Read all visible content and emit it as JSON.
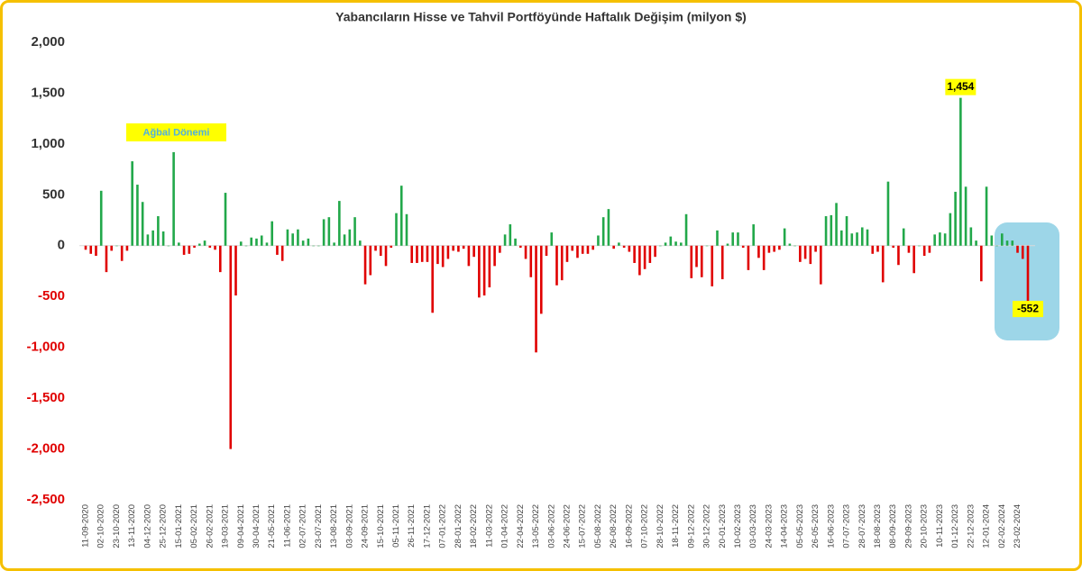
{
  "chart_data": {
    "type": "bar",
    "title": "Yabancıların Hisse ve Tahvil Portföyünde Haftalık Değişim (milyon $)",
    "categories": [
      "11-09-2020",
      null,
      null,
      "02-10-2020",
      null,
      null,
      "23-10-2020",
      null,
      null,
      "13-11-2020",
      null,
      null,
      "04-12-2020",
      null,
      null,
      "25-12-2020",
      null,
      null,
      "15-01-2021",
      null,
      null,
      "05-02-2021",
      null,
      null,
      "26-02-2021",
      null,
      null,
      "19-03-2021",
      null,
      null,
      "09-04-2021",
      null,
      null,
      "30-04-2021",
      null,
      null,
      "21-05-2021",
      null,
      null,
      "11-06-2021",
      null,
      null,
      "02-07-2021",
      null,
      null,
      "23-07-2021",
      null,
      null,
      "13-08-2021",
      null,
      null,
      "03-09-2021",
      null,
      null,
      "24-09-2021",
      null,
      null,
      "15-10-2021",
      null,
      null,
      "05-11-2021",
      null,
      null,
      "26-11-2021",
      null,
      null,
      "17-12-2021",
      null,
      null,
      "07-01-2022",
      null,
      null,
      "28-01-2022",
      null,
      null,
      "18-02-2022",
      null,
      null,
      "11-03-2022",
      null,
      null,
      "01-04-2022",
      null,
      null,
      "22-04-2022",
      null,
      null,
      "13-05-2022",
      null,
      null,
      "03-06-2022",
      null,
      null,
      "24-06-2022",
      null,
      null,
      "15-07-2022",
      null,
      null,
      "05-08-2022",
      null,
      null,
      "26-08-2022",
      null,
      null,
      "16-09-2022",
      null,
      null,
      "07-10-2022",
      null,
      null,
      "28-10-2022",
      null,
      null,
      "18-11-2022",
      null,
      null,
      "09-12-2022",
      null,
      null,
      "30-12-2022",
      null,
      null,
      "20-01-2023",
      null,
      null,
      "10-02-2023",
      null,
      null,
      "03-03-2023",
      null,
      null,
      "24-03-2023",
      null,
      null,
      "14-04-2023",
      null,
      null,
      "05-05-2023",
      null,
      null,
      "26-05-2023",
      null,
      null,
      "16-06-2023",
      null,
      null,
      "07-07-2023",
      null,
      null,
      "28-07-2023",
      null,
      null,
      "18-08-2023",
      null,
      null,
      "08-09-2023",
      null,
      null,
      "29-09-2023",
      null,
      null,
      "20-10-2023",
      null,
      null,
      "10-11-2023",
      null,
      null,
      "01-12-2023",
      null,
      null,
      "22-12-2023",
      null,
      null,
      "12-01-2024",
      null,
      null,
      "02-02-2024",
      null,
      null,
      "23-02-2024",
      null,
      null
    ],
    "values": [
      -40,
      -80,
      -100,
      540,
      -260,
      -50,
      0,
      -150,
      -50,
      830,
      600,
      430,
      110,
      150,
      290,
      140,
      0,
      920,
      30,
      -90,
      -80,
      -20,
      20,
      50,
      -20,
      -40,
      -260,
      520,
      -2000,
      -490,
      40,
      0,
      80,
      70,
      100,
      30,
      240,
      -90,
      -150,
      160,
      120,
      160,
      50,
      70,
      0,
      0,
      260,
      280,
      30,
      440,
      110,
      160,
      280,
      50,
      -380,
      -290,
      -50,
      -100,
      -200,
      -20,
      320,
      590,
      310,
      -170,
      -170,
      -160,
      -160,
      -660,
      -180,
      -210,
      -130,
      -50,
      -60,
      -30,
      -200,
      -110,
      -510,
      -490,
      -410,
      -200,
      -70,
      110,
      210,
      70,
      -20,
      -130,
      -310,
      -1050,
      -670,
      -100,
      130,
      -390,
      -340,
      -160,
      -50,
      -120,
      -80,
      -80,
      -40,
      100,
      280,
      360,
      -30,
      30,
      -20,
      -60,
      -170,
      -290,
      -230,
      -170,
      -110,
      0,
      30,
      90,
      40,
      30,
      310,
      -320,
      -210,
      -310,
      0,
      -400,
      150,
      -330,
      20,
      130,
      130,
      -20,
      -240,
      210,
      -120,
      -240,
      -70,
      -60,
      -40,
      170,
      20,
      0,
      -160,
      -130,
      -180,
      -60,
      -380,
      290,
      300,
      420,
      150,
      290,
      120,
      130,
      180,
      160,
      -80,
      -60,
      -360,
      630,
      -20,
      -190,
      170,
      -70,
      -270,
      0,
      -100,
      -70,
      110,
      130,
      120,
      320,
      530,
      1454,
      580,
      180,
      50,
      -350,
      580,
      100,
      0,
      120,
      50,
      50,
      -70,
      -130,
      -552
    ],
    "value_labels": [
      null,
      null,
      null,
      null,
      null,
      null,
      null,
      null,
      null,
      null,
      null,
      null,
      null,
      null,
      null,
      null,
      null,
      null,
      null,
      null,
      null,
      null,
      null,
      null,
      null,
      null,
      null,
      null,
      null,
      null,
      null,
      null,
      null,
      null,
      null,
      null,
      null,
      null,
      null,
      null,
      null,
      null,
      null,
      null,
      null,
      null,
      null,
      null,
      null,
      null,
      null,
      null,
      null,
      null,
      null,
      null,
      null,
      null,
      null,
      null,
      null,
      null,
      null,
      null,
      null,
      null,
      null,
      null,
      null,
      null,
      null,
      null,
      null,
      null,
      null,
      null,
      null,
      null,
      null,
      null,
      null,
      null,
      null,
      null,
      null,
      null,
      null,
      null,
      null,
      null,
      null,
      null,
      null,
      null,
      null,
      null,
      null,
      null,
      null,
      null,
      null,
      null,
      null,
      null,
      null,
      null,
      null,
      null,
      null,
      null,
      null,
      null,
      null,
      null,
      null,
      null,
      null,
      null,
      null,
      null,
      null,
      null,
      null,
      null,
      null,
      null,
      null,
      null,
      null,
      null,
      null,
      null,
      null,
      null,
      null,
      null,
      null,
      null,
      null,
      null,
      null,
      null,
      null,
      null,
      null,
      null,
      null,
      null,
      null,
      null,
      null,
      null,
      null,
      null,
      null,
      null,
      null,
      null,
      null,
      null,
      null,
      null,
      null,
      null,
      null,
      null,
      null,
      null,
      null,
      "1,454",
      null,
      null,
      null,
      null,
      null,
      null,
      null,
      null,
      null,
      null,
      null,
      null,
      "-552"
    ],
    "positive_color": "#22a84a",
    "negative_color": "#e00000",
    "ylim": [
      -2500,
      2000
    ],
    "yticks": [
      {
        "value": 2000,
        "label": "2,000"
      },
      {
        "value": 1500,
        "label": "1,500"
      },
      {
        "value": 1000,
        "label": "1,000"
      },
      500,
      0,
      -500,
      {
        "value": -1000,
        "label": "-1,000"
      },
      {
        "value": -1500,
        "label": "-1,500"
      },
      {
        "value": -2000,
        "label": "-2,000"
      },
      {
        "value": -2500,
        "label": "-2,500"
      }
    ],
    "annotations": [
      {
        "text": "Ağbal Dönemi"
      }
    ]
  }
}
